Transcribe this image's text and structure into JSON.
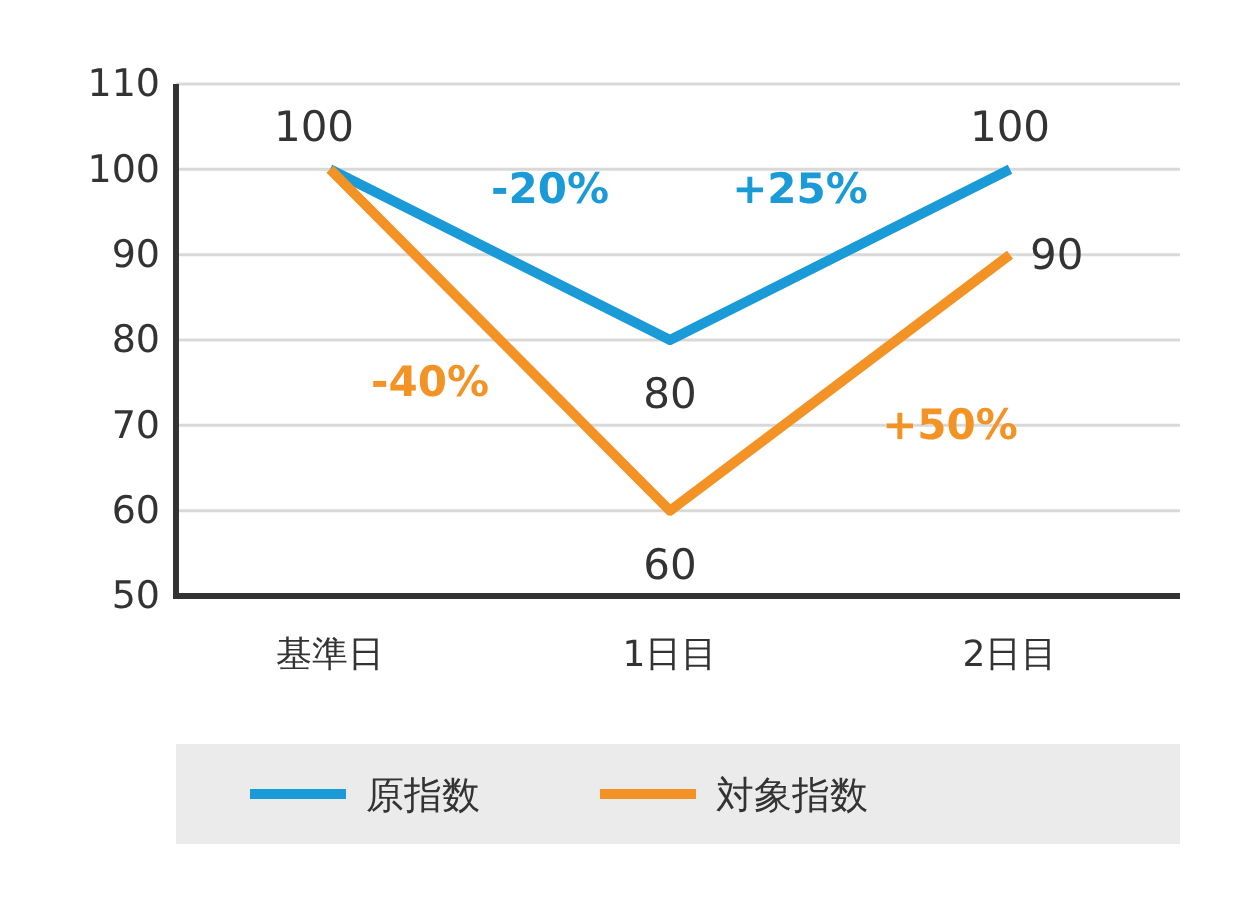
{
  "chart_data": {
    "type": "line",
    "categories": [
      "基準日",
      "1日目",
      "2日目"
    ],
    "series": [
      {
        "name": "原指数",
        "color": "#1a9ad6",
        "values": [
          100,
          80,
          100
        ],
        "value_labels": [
          "100",
          "80",
          "100"
        ]
      },
      {
        "name": "対象指数",
        "color": "#f39325",
        "values": [
          100,
          60,
          90
        ],
        "value_labels": [
          null,
          "60",
          "90"
        ]
      }
    ],
    "ylim": [
      50,
      110
    ],
    "yticks": [
      50,
      60,
      70,
      80,
      90,
      100,
      110
    ],
    "grid": "y",
    "legend": "bottom",
    "marker": "none",
    "line_style": "solid",
    "annotations": [
      "-20%",
      "+25%",
      "-40%",
      "+50%"
    ]
  }
}
